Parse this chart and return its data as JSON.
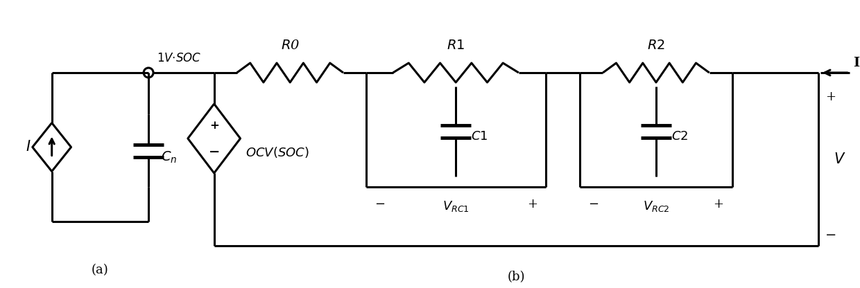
{
  "bg_color": "#ffffff",
  "line_color": "#000000",
  "line_width": 2.2,
  "fig_width": 12.4,
  "fig_height": 4.16,
  "label_a": "(a)",
  "label_b": "(b)"
}
